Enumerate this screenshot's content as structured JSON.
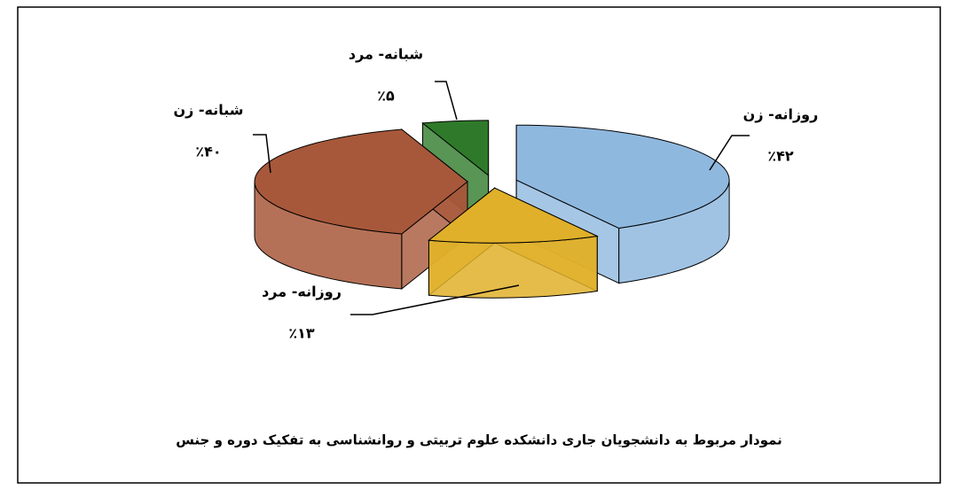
{
  "chart_data": {
    "type": "pie3d",
    "title": "نمودار مربوط به دانشجویان جاری دانشکده علوم تربیتی و روانشناسی به تفکیک دوره و جنس",
    "categories": [
      "روزانه- زن",
      "روزانه- مرد",
      "شبانه- زن",
      "شبانه- مرد"
    ],
    "values": [
      42,
      13,
      40,
      5
    ],
    "value_labels": [
      "٪۴۲",
      "٪۱۳",
      "٪۴۰",
      "٪۵"
    ],
    "colors": [
      "#8fb8df",
      "#e0b02a",
      "#a8583a",
      "#2f7a2a"
    ]
  }
}
